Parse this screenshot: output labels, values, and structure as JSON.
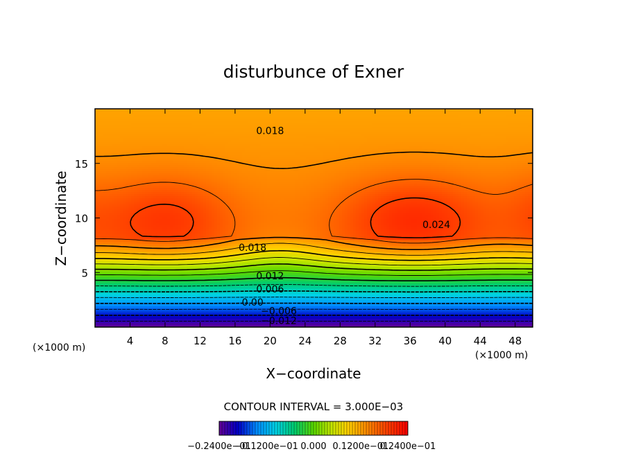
{
  "chart_data": {
    "type": "contour",
    "title": "disturbunce of Exner",
    "xlabel": "X−coordinate",
    "ylabel": "Z−coordinate",
    "x_unit_label": "(×1000 m)",
    "z_unit_label": "(×1000 m)",
    "xlim": [
      0,
      50
    ],
    "ylim": [
      0,
      20
    ],
    "xticks": [
      4,
      8,
      12,
      16,
      20,
      24,
      28,
      32,
      36,
      40,
      44,
      48
    ],
    "yticks": [
      5,
      10,
      15
    ],
    "contour_interval_text": "CONTOUR INTERVAL = 3.000E−03",
    "contour_interval": 0.003,
    "contour_labels": [
      {
        "text": "0.018",
        "x": 20,
        "z": 18
      },
      {
        "text": "0.018",
        "x": 18,
        "z": 7.3
      },
      {
        "text": "0.024",
        "x": 39,
        "z": 9.4
      },
      {
        "text": "0.012",
        "x": 20,
        "z": 4.7
      },
      {
        "text": "0.006",
        "x": 20,
        "z": 3.5
      },
      {
        "text": "0.00",
        "x": 18,
        "z": 2.3
      },
      {
        "text": "−0.006",
        "x": 21,
        "z": 1.5
      },
      {
        "text": "−0.012",
        "x": 21,
        "z": 0.6
      }
    ],
    "value_range": [
      -0.024,
      0.03
    ],
    "colorbar": {
      "labels": [
        "−0.2400e−01",
        "−0.1200e−01",
        "0.000",
        "0.1200e−01",
        "0.2400e−01"
      ],
      "values": [
        -0.024,
        -0.012,
        0.0,
        0.012,
        0.024
      ]
    },
    "grid": false
  }
}
